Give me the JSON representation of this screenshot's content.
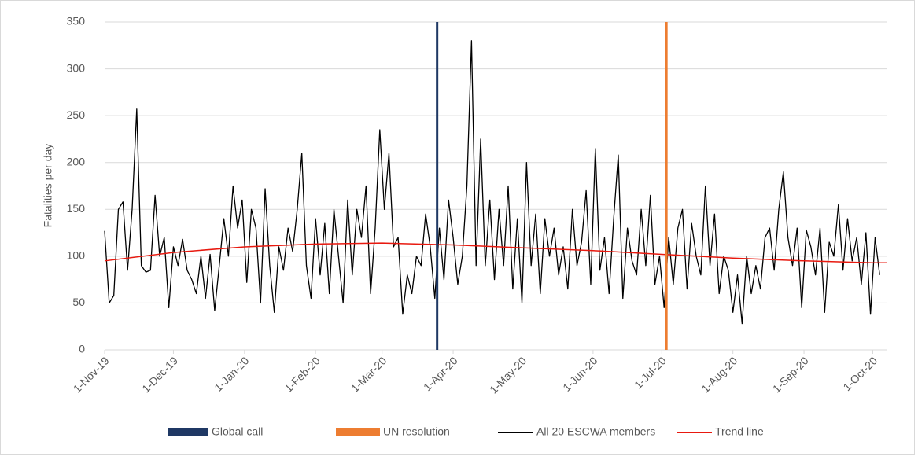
{
  "chart_data": {
    "type": "line",
    "y_label": "Fatalities per day",
    "ylim": [
      0,
      350
    ],
    "yticks": [
      0,
      50,
      100,
      150,
      200,
      250,
      300,
      350
    ],
    "grid": true,
    "xlim": [
      "2019-11-01",
      "2020-10-07"
    ],
    "xticks": [
      {
        "value": "2019-11-01",
        "label": "1-Nov-19"
      },
      {
        "value": "2019-12-01",
        "label": "1-Dec-19"
      },
      {
        "value": "2020-01-01",
        "label": "1-Jan-20"
      },
      {
        "value": "2020-02-01",
        "label": "1-Feb-20"
      },
      {
        "value": "2020-03-01",
        "label": "1-Mar-20"
      },
      {
        "value": "2020-04-01",
        "label": "1-Apr-20"
      },
      {
        "value": "2020-05-01",
        "label": "1-May-20"
      },
      {
        "value": "2020-06-01",
        "label": "1-Jun-20"
      },
      {
        "value": "2020-07-01",
        "label": "1-Jul-20"
      },
      {
        "value": "2020-08-01",
        "label": "1-Aug-20"
      },
      {
        "value": "2020-09-01",
        "label": "1-Sep-20"
      },
      {
        "value": "2020-10-01",
        "label": "1-Oct-20"
      }
    ],
    "markers": [
      {
        "name": "Global call",
        "x": "2020-03-25",
        "color": "#1f3864"
      },
      {
        "name": "UN resolution",
        "x": "2020-07-03",
        "color": "#ed7d31"
      }
    ],
    "series": [
      {
        "name": "All 20 ESCWA members",
        "color": "#000000",
        "x": [
          "2019-11-01",
          "2019-11-03",
          "2019-11-05",
          "2019-11-07",
          "2019-11-09",
          "2019-11-11",
          "2019-11-13",
          "2019-11-15",
          "2019-11-17",
          "2019-11-19",
          "2019-11-21",
          "2019-11-23",
          "2019-11-25",
          "2019-11-27",
          "2019-11-29",
          "2019-12-01",
          "2019-12-03",
          "2019-12-05",
          "2019-12-07",
          "2019-12-09",
          "2019-12-11",
          "2019-12-13",
          "2019-12-15",
          "2019-12-17",
          "2019-12-19",
          "2019-12-21",
          "2019-12-23",
          "2019-12-25",
          "2019-12-27",
          "2019-12-29",
          "2019-12-31",
          "2020-01-02",
          "2020-01-04",
          "2020-01-06",
          "2020-01-08",
          "2020-01-10",
          "2020-01-12",
          "2020-01-14",
          "2020-01-16",
          "2020-01-18",
          "2020-01-20",
          "2020-01-22",
          "2020-01-24",
          "2020-01-26",
          "2020-01-28",
          "2020-01-30",
          "2020-02-01",
          "2020-02-03",
          "2020-02-05",
          "2020-02-07",
          "2020-02-09",
          "2020-02-11",
          "2020-02-13",
          "2020-02-15",
          "2020-02-17",
          "2020-02-19",
          "2020-02-21",
          "2020-02-23",
          "2020-02-25",
          "2020-02-27",
          "2020-02-29",
          "2020-03-02",
          "2020-03-04",
          "2020-03-06",
          "2020-03-08",
          "2020-03-10",
          "2020-03-12",
          "2020-03-14",
          "2020-03-16",
          "2020-03-18",
          "2020-03-20",
          "2020-03-22",
          "2020-03-24",
          "2020-03-26",
          "2020-03-28",
          "2020-03-30",
          "2020-04-01",
          "2020-04-03",
          "2020-04-05",
          "2020-04-07",
          "2020-04-09",
          "2020-04-11",
          "2020-04-13",
          "2020-04-15",
          "2020-04-17",
          "2020-04-19",
          "2020-04-21",
          "2020-04-23",
          "2020-04-25",
          "2020-04-27",
          "2020-04-29",
          "2020-05-01",
          "2020-05-03",
          "2020-05-05",
          "2020-05-07",
          "2020-05-09",
          "2020-05-11",
          "2020-05-13",
          "2020-05-15",
          "2020-05-17",
          "2020-05-19",
          "2020-05-21",
          "2020-05-23",
          "2020-05-25",
          "2020-05-27",
          "2020-05-29",
          "2020-05-31",
          "2020-06-02",
          "2020-06-04",
          "2020-06-06",
          "2020-06-08",
          "2020-06-10",
          "2020-06-12",
          "2020-06-14",
          "2020-06-16",
          "2020-06-18",
          "2020-06-20",
          "2020-06-22",
          "2020-06-24",
          "2020-06-26",
          "2020-06-28",
          "2020-06-30",
          "2020-07-02",
          "2020-07-04",
          "2020-07-06",
          "2020-07-08",
          "2020-07-10",
          "2020-07-12",
          "2020-07-14",
          "2020-07-16",
          "2020-07-18",
          "2020-07-20",
          "2020-07-22",
          "2020-07-24",
          "2020-07-26",
          "2020-07-28",
          "2020-07-30",
          "2020-08-01",
          "2020-08-03",
          "2020-08-05",
          "2020-08-07",
          "2020-08-09",
          "2020-08-11",
          "2020-08-13",
          "2020-08-15",
          "2020-08-17",
          "2020-08-19",
          "2020-08-21",
          "2020-08-23",
          "2020-08-25",
          "2020-08-27",
          "2020-08-29",
          "2020-08-31",
          "2020-09-02",
          "2020-09-04",
          "2020-09-06",
          "2020-09-08",
          "2020-09-10",
          "2020-09-12",
          "2020-09-14",
          "2020-09-16",
          "2020-09-18",
          "2020-09-20",
          "2020-09-22",
          "2020-09-24",
          "2020-09-26",
          "2020-09-28",
          "2020-09-30",
          "2020-10-02",
          "2020-10-04"
        ],
        "values": [
          127,
          50,
          58,
          150,
          158,
          85,
          150,
          257,
          90,
          83,
          85,
          165,
          100,
          120,
          45,
          110,
          90,
          118,
          85,
          75,
          60,
          100,
          55,
          102,
          42,
          90,
          140,
          100,
          175,
          130,
          160,
          72,
          150,
          130,
          50,
          172,
          90,
          40,
          110,
          85,
          130,
          105,
          150,
          210,
          90,
          55,
          140,
          80,
          135,
          60,
          150,
          100,
          50,
          160,
          80,
          150,
          120,
          175,
          60,
          130,
          235,
          150,
          210,
          110,
          120,
          38,
          80,
          60,
          100,
          90,
          145,
          110,
          55,
          130,
          75,
          160,
          120,
          70,
          100,
          175,
          330,
          90,
          225,
          90,
          160,
          75,
          150,
          90,
          175,
          65,
          140,
          50,
          200,
          90,
          145,
          60,
          140,
          100,
          130,
          80,
          110,
          65,
          150,
          90,
          115,
          170,
          70,
          215,
          85,
          120,
          60,
          140,
          208,
          55,
          130,
          95,
          80,
          150,
          90,
          165,
          70,
          100,
          45,
          120,
          70,
          130,
          150,
          65,
          135,
          100,
          80,
          175,
          90,
          145,
          60,
          100,
          85,
          40,
          80,
          28,
          100,
          60,
          90,
          65,
          120,
          130,
          85,
          150,
          190,
          120,
          90,
          130,
          45,
          128,
          110,
          80,
          130,
          40,
          115,
          100,
          155,
          85,
          140,
          95,
          120,
          70,
          125,
          38,
          120,
          80
        ]
      },
      {
        "name": "Trend line",
        "color": "#e8190f",
        "x": [
          "2019-11-01",
          "2019-12-01",
          "2020-01-01",
          "2020-02-01",
          "2020-03-01",
          "2020-04-01",
          "2020-05-01",
          "2020-06-01",
          "2020-07-01",
          "2020-08-01",
          "2020-09-01",
          "2020-10-01",
          "2020-10-07"
        ],
        "values": [
          95,
          104,
          110,
          113,
          114,
          112,
          109,
          106,
          102,
          98,
          95,
          93,
          93
        ]
      }
    ]
  }
}
